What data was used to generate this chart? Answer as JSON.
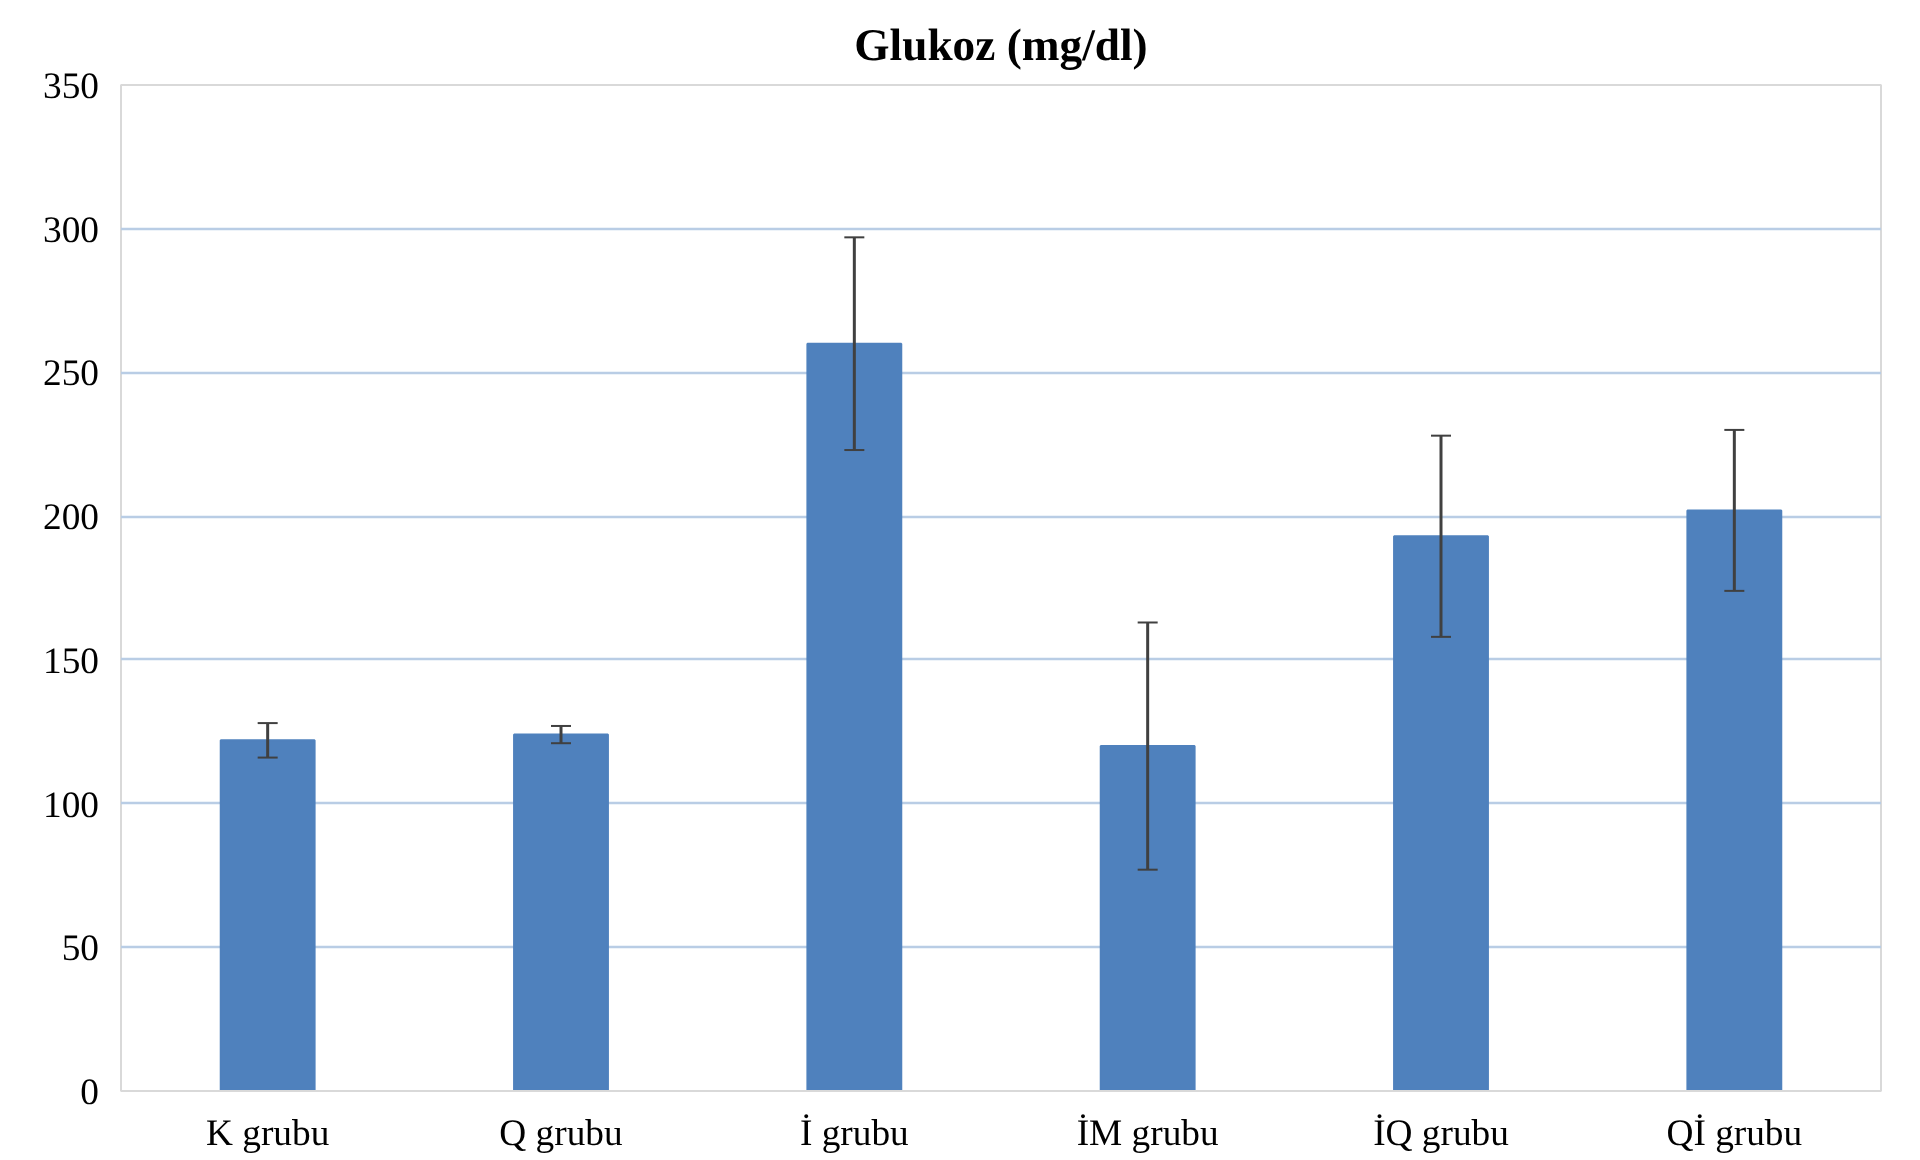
{
  "chart_data": {
    "type": "bar",
    "title": "Glukoz (mg/dl)",
    "categories": [
      "K grubu",
      "Q grubu",
      "İ grubu",
      "İM grubu",
      "İQ grubu",
      "Qİ grubu"
    ],
    "values": [
      122,
      124,
      260,
      120,
      193,
      202
    ],
    "errors": [
      6,
      3,
      37,
      43,
      35,
      28
    ],
    "color": "#4f81bd",
    "ylim": [
      0,
      350
    ],
    "yticks": [
      0,
      50,
      100,
      150,
      200,
      250,
      300,
      350
    ],
    "grid": "y"
  }
}
